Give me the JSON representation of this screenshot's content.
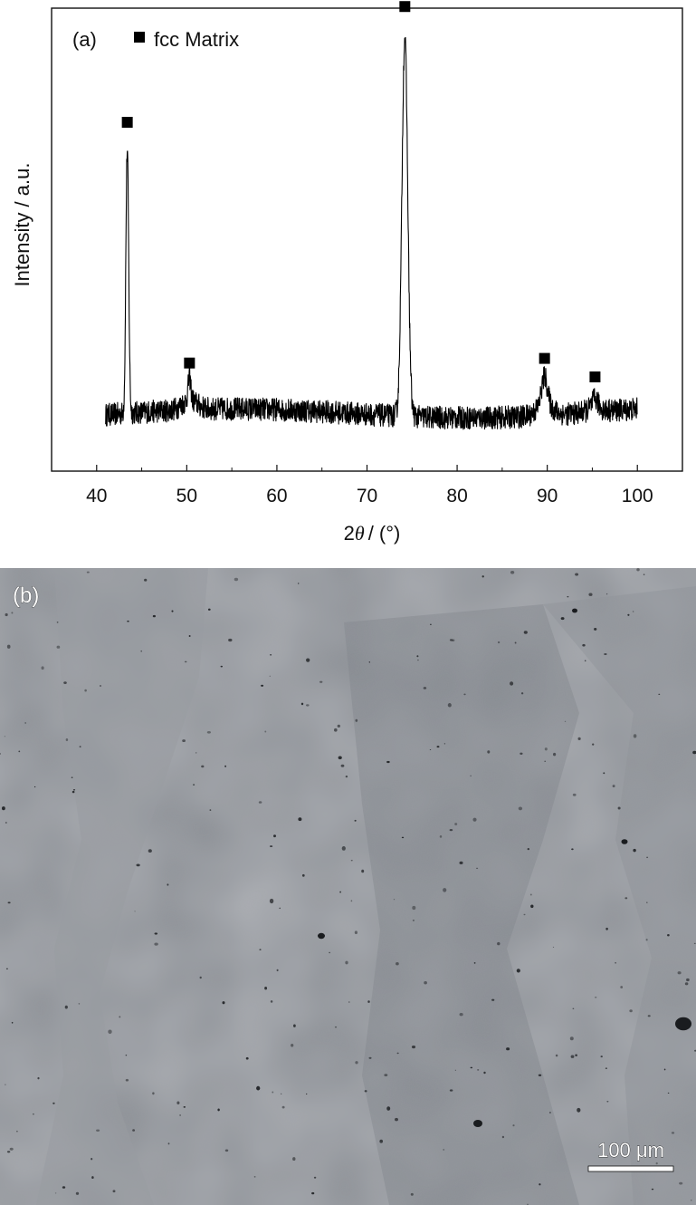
{
  "panel_a_label": "(a)",
  "panel_b_label": "(b)",
  "scale_bar_label": "100 μm",
  "chart_data": {
    "type": "line",
    "title": "",
    "xlabel": "2θ / (°)",
    "xlabel_theta": "θ",
    "xlabel_prefix": "2",
    "xlabel_suffix": "/ (°)",
    "ylabel": "Intensity / a.u.",
    "xlim": [
      35,
      105
    ],
    "ylim": [
      0,
      1.0
    ],
    "x_ticks": [
      40,
      50,
      60,
      70,
      80,
      90,
      100
    ],
    "x_range": [
      41,
      100
    ],
    "y_ticks_shown": false,
    "grid": false,
    "legend": {
      "position": "top-left",
      "entries": [
        {
          "marker": "square",
          "label": "fcc Matrix"
        }
      ]
    },
    "series": [
      {
        "name": "fcc Matrix",
        "background": 0.12,
        "peaks": [
          {
            "x": 43.4,
            "height": 0.57
          },
          {
            "x": 50.3,
            "height": 0.05
          },
          {
            "x": 74.2,
            "height": 0.82
          },
          {
            "x": 89.7,
            "height": 0.06
          },
          {
            "x": 95.3,
            "height": 0.02
          }
        ],
        "markers_at_x": [
          43.4,
          50.3,
          74.2,
          89.7,
          95.3
        ]
      }
    ]
  },
  "colors": {
    "line": "#000000",
    "micrograph_base": "#8a8e94",
    "micrograph_light": "#9a9ea4",
    "micrograph_dark": "#7f838a"
  }
}
